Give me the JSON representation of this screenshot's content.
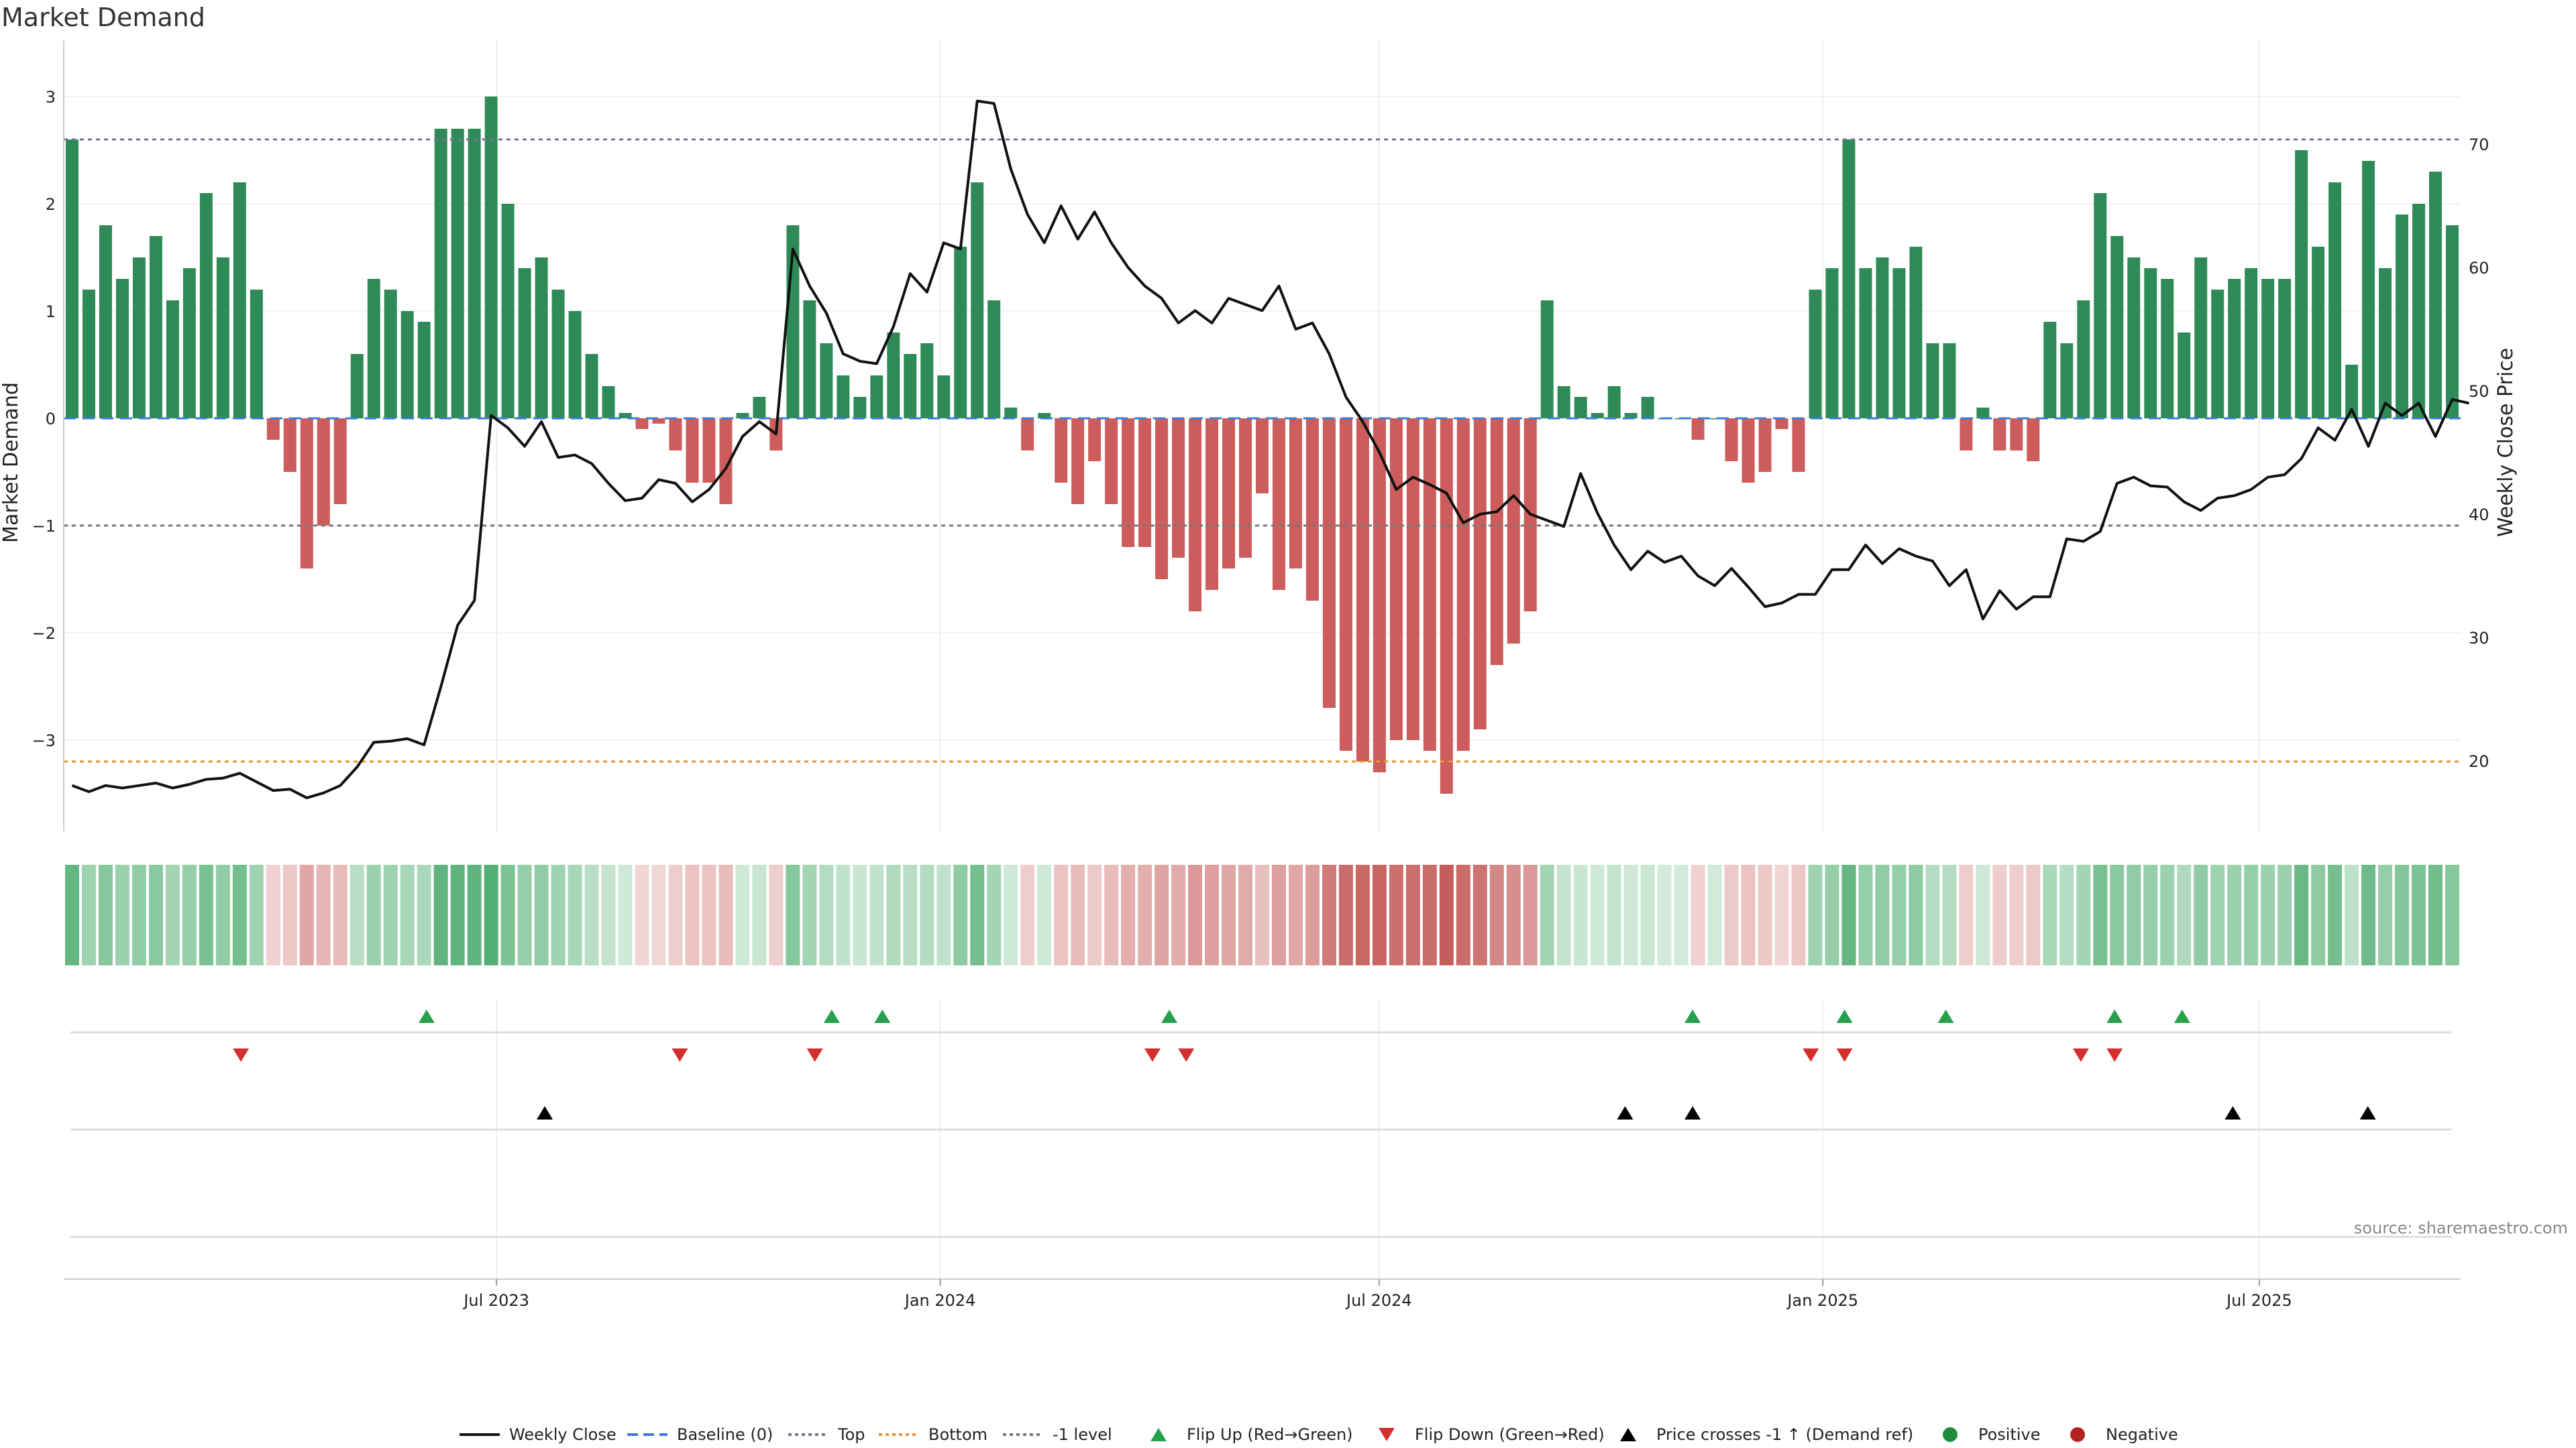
{
  "title": "Market Demand",
  "source": "source: sharemaestro.com",
  "chart_data": {
    "type": "bar",
    "ylabel": "Market Demand",
    "y2label": "Weekly Close Price",
    "ylim": [
      -3.8,
      3.2
    ],
    "y2lim": [
      14,
      75
    ],
    "yticks": [
      3,
      2,
      1,
      0,
      -1,
      -2,
      -3
    ],
    "y2ticks": [
      70,
      60,
      50,
      40,
      30,
      20
    ],
    "start_date": "2023-01-06",
    "end_date": "2025-09-19",
    "xticks": [
      {
        "date": "2023-07-01",
        "label": "Jul 2023"
      },
      {
        "date": "2024-01-01",
        "label": "Jan 2024"
      },
      {
        "date": "2024-07-01",
        "label": "Jul 2024"
      },
      {
        "date": "2025-01-01",
        "label": "Jan 2025"
      },
      {
        "date": "2025-07-01",
        "label": "Jul 2025"
      }
    ],
    "reference_lines": {
      "top": 2.6,
      "bottom": -3.2,
      "minus1": -1,
      "baseline": 0
    },
    "demand": [
      2.6,
      1.2,
      1.8,
      1.3,
      1.5,
      1.7,
      1.1,
      1.4,
      2.1,
      1.5,
      2.2,
      1.2,
      -0.2,
      -0.5,
      -1.4,
      -1.0,
      -0.8,
      0.6,
      1.3,
      1.2,
      1.0,
      0.9,
      2.7,
      2.7,
      2.7,
      3.0,
      2.0,
      1.4,
      1.5,
      1.2,
      1.0,
      0.6,
      0.3,
      0.05,
      -0.1,
      -0.05,
      -0.3,
      -0.6,
      -0.6,
      -0.8,
      0.05,
      0.2,
      -0.3,
      1.8,
      1.1,
      0.7,
      0.4,
      0.2,
      0.4,
      0.8,
      0.6,
      0.7,
      0.4,
      1.6,
      2.2,
      1.1,
      0.1,
      -0.3,
      0.05,
      -0.6,
      -0.8,
      -0.4,
      -0.8,
      -1.2,
      -1.2,
      -1.5,
      -1.3,
      -1.8,
      -1.6,
      -1.4,
      -1.3,
      -0.7,
      -1.6,
      -1.4,
      -1.7,
      -2.7,
      -3.1,
      -3.2,
      -3.3,
      -3.0,
      -3.0,
      -3.1,
      -3.5,
      -3.1,
      -2.9,
      -2.3,
      -2.1,
      -1.8,
      1.1,
      0.3,
      0.2,
      0.05,
      0.3,
      0.05,
      0.2,
      0.0,
      0.0,
      -0.2,
      0.0,
      -0.4,
      -0.6,
      -0.5,
      -0.1,
      -0.5,
      1.2,
      1.4,
      2.6,
      1.4,
      1.5,
      1.4,
      1.6,
      0.7,
      0.7,
      -0.3,
      0.1,
      -0.3,
      -0.3,
      -0.4,
      0.9,
      0.7,
      1.1,
      2.1,
      1.7,
      1.5,
      1.4,
      1.3,
      0.8,
      1.5,
      1.2,
      1.3,
      1.4,
      1.3,
      1.3,
      2.5,
      1.6,
      2.2,
      0.5,
      2.4,
      1.4,
      1.9,
      2.0,
      2.3,
      1.8
    ],
    "close": [
      18,
      17.5,
      18,
      17.8,
      18,
      18.2,
      17.8,
      18.1,
      18.5,
      18.6,
      19,
      18.3,
      17.6,
      17.7,
      17,
      17.4,
      18,
      19.5,
      21.5,
      21.6,
      21.8,
      21.3,
      26,
      31,
      33,
      48,
      47,
      45.5,
      47.5,
      44.6,
      44.8,
      44.1,
      42.5,
      41.1,
      41.3,
      42.8,
      42.5,
      41,
      42,
      43.7,
      46.3,
      47.5,
      46.5,
      61.5,
      58.5,
      56.3,
      53,
      52.4,
      52.2,
      55.2,
      59.5,
      58,
      62,
      61.5,
      73.5,
      73.3,
      68,
      64.3,
      62,
      65,
      62.3,
      64.5,
      62,
      60,
      58.5,
      57.5,
      55.5,
      56.5,
      55.5,
      57.5,
      57,
      56.5,
      58.5,
      55,
      55.5,
      53,
      49.5,
      47.5,
      45,
      42,
      43,
      42.4,
      41.7,
      39.3,
      40,
      40.2,
      41.5,
      40,
      39.5,
      39,
      43.3,
      40.1,
      37.5,
      35.5,
      37,
      36.1,
      36.6,
      35,
      34.2,
      35.6,
      34.1,
      32.5,
      32.8,
      33.5,
      33.5,
      35.5,
      35.5,
      37.5,
      36,
      37.2,
      36.6,
      36.2,
      34.2,
      35.5,
      31.5,
      33.8,
      32.3,
      33.3,
      33.3,
      38,
      37.8,
      38.6,
      42.5,
      43,
      42.3,
      42.2,
      41,
      40.3,
      41.3,
      41.5,
      42,
      43,
      43.2,
      44.5,
      47,
      46,
      48.5,
      45.5,
      49,
      48,
      49,
      46.3,
      49.3,
      49
    ],
    "flip_up": [
      "2023-06-02",
      "2023-11-17",
      "2023-12-08",
      "2024-04-05",
      "2024-11-08",
      "2025-01-10",
      "2025-02-21",
      "2025-05-02",
      "2025-05-30"
    ],
    "flip_down": [
      "2023-03-17",
      "2023-09-15",
      "2023-11-10",
      "2024-03-29",
      "2024-04-12",
      "2024-12-27",
      "2025-01-10",
      "2025-04-18",
      "2025-05-02"
    ],
    "price_cross": [
      "2023-07-21",
      "2024-10-11",
      "2024-11-08",
      "2025-06-20",
      "2025-08-15"
    ],
    "legend": [
      {
        "label": "Weekly Close",
        "kind": "line",
        "color": "#111111"
      },
      {
        "label": "Baseline (0)",
        "kind": "dash",
        "color": "#3a7bd5"
      },
      {
        "label": "Top",
        "kind": "dot",
        "color": "#7a6f9b"
      },
      {
        "label": "Bottom",
        "kind": "dot",
        "color": "#e8952e"
      },
      {
        "label": "-1 level",
        "kind": "dot",
        "color": "#777777"
      },
      {
        "label": "Flip Up (Red→Green)",
        "kind": "tri-up",
        "color": "#27a04b"
      },
      {
        "label": "Flip Down (Green→Red)",
        "kind": "tri-down",
        "color": "#d32f2f"
      },
      {
        "label": "Price crosses -1 ↑ (Demand ref)",
        "kind": "tri-up",
        "color": "#000000"
      },
      {
        "label": "Positive",
        "kind": "circle",
        "color": "#1e8e3e"
      },
      {
        "label": "Negative",
        "kind": "circle",
        "color": "#b22222"
      }
    ],
    "colors": {
      "positive": "#2e8b57",
      "negative": "#cd5c5c",
      "strip_pos": "#2e9e55",
      "strip_neg": "#c0504d"
    }
  }
}
